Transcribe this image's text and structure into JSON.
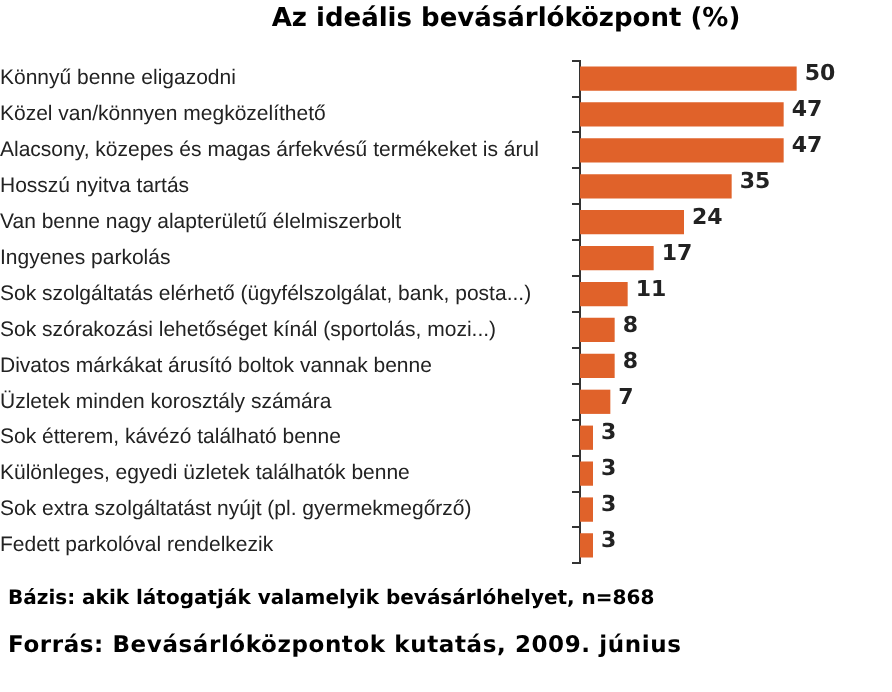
{
  "chart_data": {
    "type": "bar",
    "orientation": "horizontal",
    "title": "Az ideális bevásárlóközpont (%)",
    "categories": [
      "Könnyű benne eligazodni",
      "Közel van/könnyen megközelíthető",
      "Alacsony, közepes és magas árfekvésű termékeket is árul",
      "Hosszú nyitva tartás",
      "Van benne nagy alapterületű élelmiszerbolt",
      "Ingyenes parkolás",
      "Sok szolgáltatás elérhető (ügyfélszolgálat, bank, posta...)",
      "Sok szórakozási lehetőséget kínál (sportolás, mozi...)",
      "Divatos márkákat árusító boltok vannak benne",
      "Üzletek minden korosztály számára",
      "Sok étterem, kávézó található benne",
      "Különleges, egyedi üzletek találhatók benne",
      "Sok extra szolgáltatást nyújt (pl. gyermekmegőrző)",
      "Fedett parkolóval rendelkezik"
    ],
    "values": [
      50,
      47,
      47,
      35,
      24,
      17,
      11,
      8,
      8,
      7,
      3,
      3,
      3,
      3
    ],
    "color": "#e0622a",
    "data_labels": true,
    "tick_labels": "y",
    "grid": false,
    "legend": false,
    "annotations": [
      "Bázis: akik látogatják valamelyik bevásárlóhelyet, n=868",
      "Forrás: Bevásárlóközpontok kutatás, 2009. június"
    ]
  }
}
